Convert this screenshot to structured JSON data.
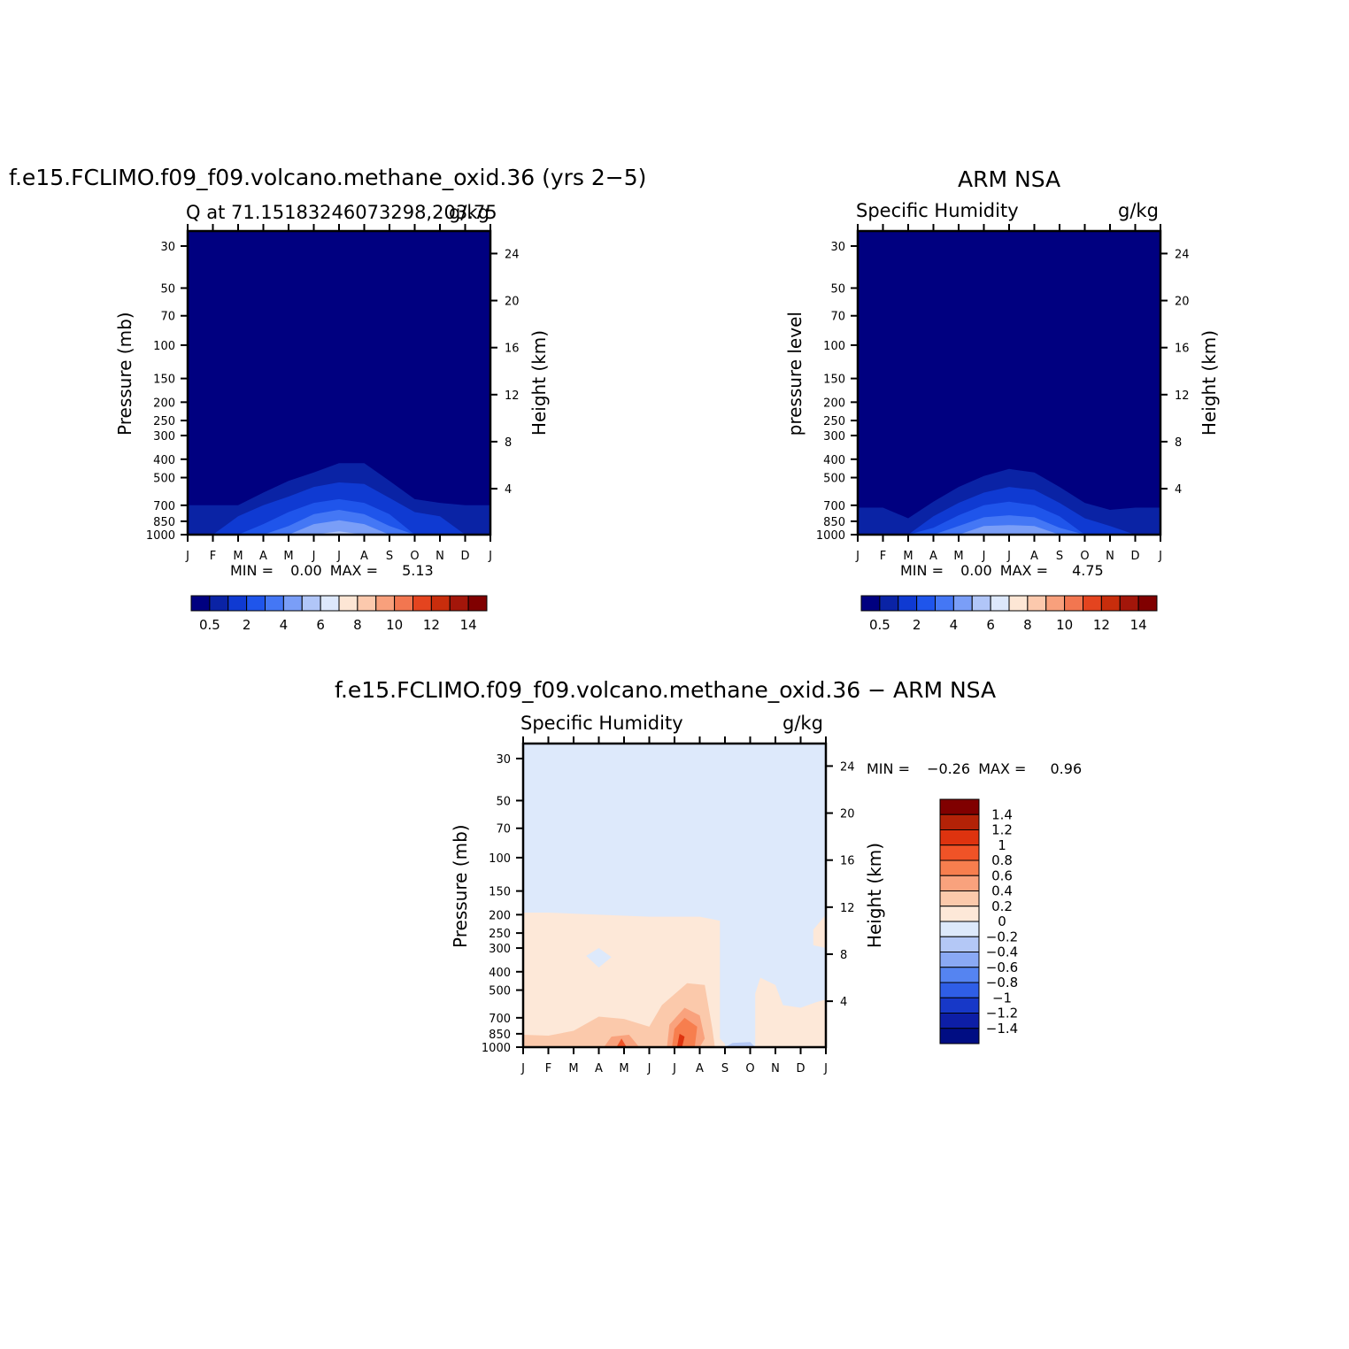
{
  "months": [
    "J",
    "F",
    "M",
    "A",
    "M",
    "J",
    "J",
    "A",
    "S",
    "O",
    "N",
    "D",
    "J"
  ],
  "pressure_ticks": [
    30,
    50,
    70,
    100,
    150,
    200,
    250,
    300,
    400,
    500,
    700,
    850,
    1000
  ],
  "height_ticks": [
    4,
    8,
    12,
    16,
    20,
    24
  ],
  "colorbar_top_labels": [
    "0.5",
    "2",
    "4",
    "6",
    "8",
    "10",
    "12",
    "14"
  ],
  "colorbar_diff_labels": [
    "1.4",
    "1.2",
    "1",
    "0.8",
    "0.6",
    "0.4",
    "0.2",
    "0",
    "-0.2",
    "-0.4",
    "-0.6",
    "-0.8",
    "-1",
    "-1.2",
    "-1.4"
  ],
  "colors": {
    "seq": [
      "#000080",
      "#0a23a5",
      "#0f3ad2",
      "#1f55eb",
      "#4477f5",
      "#7a9ef7",
      "#b1c6f8",
      "#dde8fc",
      "#fde6d5",
      "#fcc9ad",
      "#f8a07c",
      "#f27650",
      "#e4441f",
      "#c82d0c",
      "#a3160a",
      "#800000"
    ],
    "diff": [
      "#800000",
      "#b32207",
      "#de330f",
      "#f05327",
      "#f77e4e",
      "#f9a27d",
      "#fbc9ab",
      "#fde8d8",
      "#dde9fb",
      "#b4c8f6",
      "#8aa9f4",
      "#5584f1",
      "#2f5ee6",
      "#1738c8",
      "#0d1ea6",
      "#000d83"
    ]
  },
  "plots": [
    {
      "title": "f.e15.FCLIMO.f09_f09.volcano.methane_oxid.36 (yrs 2−5)",
      "subtitle_left": "Q  at 71.15183246073298,203.75",
      "subtitle_right": "g/kg",
      "ylabel": "Pressure  (mb)",
      "ylabel_right": "Height  (km)",
      "min_label": "MIN =",
      "min_value": "0.00",
      "max_label": "MAX =",
      "max_value": "5.13"
    },
    {
      "title": "ARM NSA",
      "subtitle_left": "Specific  Humidity",
      "subtitle_right": "g/kg",
      "ylabel": "pressure  level",
      "ylabel_right": "Height  (km)",
      "min_label": "MIN =",
      "min_value": "0.00",
      "max_label": "MAX =",
      "max_value": "4.75"
    },
    {
      "title": "f.e15.FCLIMO.f09_f09.volcano.methane_oxid.36 − ARM NSA",
      "subtitle_left": "Specific  Humidity",
      "subtitle_right": "g/kg",
      "ylabel": "Pressure  (mb)",
      "ylabel_right": "Height  (km)",
      "min_label": "MIN =",
      "min_value": "−0.26",
      "max_label": "MAX =",
      "max_value": "0.96"
    }
  ],
  "chart_data": [
    {
      "type": "heatmap",
      "title": "f.e15.FCLIMO.f09_f09.volcano.methane_oxid.36 (yrs 2−5)",
      "subtitle": "Q  at 71.15183246073298,203.75",
      "units": "g/kg",
      "x": [
        "J",
        "F",
        "M",
        "A",
        "M",
        "J",
        "J",
        "A",
        "S",
        "O",
        "N",
        "D",
        "J"
      ],
      "y_pressure_mb": [
        1000,
        850,
        700,
        500,
        400
      ],
      "contour_levels": [
        0.5,
        1,
        2,
        3,
        4,
        5
      ],
      "top_of_contour_mb": {
        "0.5": [
          700,
          700,
          700,
          600,
          520,
          470,
          420,
          420,
          520,
          650,
          680,
          700,
          700
        ],
        "1": [
          1000,
          1000,
          800,
          700,
          630,
          560,
          530,
          540,
          640,
          760,
          800,
          1000,
          1000
        ],
        "2": [
          1000,
          1000,
          1000,
          880,
          760,
          680,
          650,
          680,
          780,
          1000,
          1000,
          1000,
          1000
        ],
        "3": [
          1000,
          1000,
          1000,
          1000,
          900,
          780,
          740,
          780,
          900,
          1000,
          1000,
          1000,
          1000
        ],
        "4": [
          1000,
          1000,
          1000,
          1000,
          1000,
          880,
          840,
          880,
          1000,
          1000,
          1000,
          1000,
          1000
        ],
        "5": [
          1000,
          1000,
          1000,
          1000,
          1000,
          1000,
          960,
          1000,
          1000,
          1000,
          1000,
          1000,
          1000
        ]
      },
      "min": 0.0,
      "max": 5.13,
      "xlabel": "",
      "ylabel": "Pressure  (mb)",
      "ylabel_right": "Height  (km)",
      "colorbar_levels": [
        0.5,
        1,
        2,
        3,
        4,
        5,
        6,
        7,
        8,
        9,
        10,
        11,
        12,
        13,
        14
      ]
    },
    {
      "type": "heatmap",
      "title": "ARM NSA",
      "subtitle": "Specific  Humidity",
      "units": "g/kg",
      "x": [
        "J",
        "F",
        "M",
        "A",
        "M",
        "J",
        "J",
        "A",
        "S",
        "O",
        "N",
        "D",
        "J"
      ],
      "y_pressure_mb": [
        1000,
        850,
        700,
        500,
        400
      ],
      "contour_levels": [
        0.5,
        1,
        2,
        3,
        4
      ],
      "top_of_contour_mb": {
        "0.5": [
          720,
          720,
          820,
          670,
          560,
          490,
          450,
          470,
          560,
          680,
          740,
          720,
          720
        ],
        "1": [
          1000,
          1000,
          1000,
          800,
          680,
          600,
          560,
          580,
          680,
          820,
          900,
          1000,
          1000
        ],
        "2": [
          1000,
          1000,
          1000,
          920,
          790,
          700,
          670,
          700,
          800,
          1000,
          1000,
          1000,
          1000
        ],
        "3": [
          1000,
          1000,
          1000,
          1000,
          900,
          810,
          790,
          810,
          920,
          1000,
          1000,
          1000,
          1000
        ],
        "4": [
          1000,
          1000,
          1000,
          1000,
          1000,
          900,
          890,
          900,
          1000,
          1000,
          1000,
          1000,
          1000
        ]
      },
      "min": 0.0,
      "max": 4.75,
      "xlabel": "",
      "ylabel": "pressure  level",
      "ylabel_right": "Height  (km)",
      "colorbar_levels": [
        0.5,
        1,
        2,
        3,
        4,
        5,
        6,
        7,
        8,
        9,
        10,
        11,
        12,
        13,
        14
      ]
    },
    {
      "type": "heatmap",
      "title": "f.e15.FCLIMO.f09_f09.volcano.methane_oxid.36 − ARM NSA",
      "subtitle": "Specific  Humidity",
      "units": "g/kg",
      "x": [
        "J",
        "F",
        "M",
        "A",
        "M",
        "J",
        "J",
        "A",
        "S",
        "O",
        "N",
        "D",
        "J"
      ],
      "description_regions": {
        "above_200mb": "-0.2 to 0",
        "200_to_1000mb_Jan_to_Aug": "0 to 0.2",
        "Sep_to_Dec_mid_levels": "-0.2 to 0",
        "Jul_near_850mb": "0.6 to 0.8"
      },
      "min": -0.26,
      "max": 0.96,
      "xlabel": "",
      "ylabel": "Pressure  (mb)",
      "ylabel_right": "Height  (km)",
      "colorbar_levels": [
        -1.4,
        -1.2,
        -1,
        -0.8,
        -0.6,
        -0.4,
        -0.2,
        0,
        0.2,
        0.4,
        0.6,
        0.8,
        1,
        1.2,
        1.4
      ]
    }
  ]
}
